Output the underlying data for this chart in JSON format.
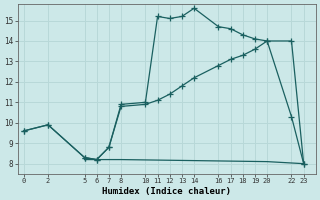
{
  "xlabel": "Humidex (Indice chaleur)",
  "bg_color": "#cce8e8",
  "grid_color": "#b8d8d8",
  "line_color": "#1a6060",
  "xlim": [
    -0.5,
    24
  ],
  "ylim": [
    7.5,
    15.8
  ],
  "yticks": [
    8,
    9,
    10,
    11,
    12,
    13,
    14,
    15
  ],
  "xticks": [
    0,
    2,
    5,
    6,
    7,
    8,
    10,
    11,
    12,
    13,
    14,
    16,
    17,
    18,
    19,
    20,
    22,
    23
  ],
  "line1_x": [
    0,
    2,
    5,
    6,
    7,
    8,
    10,
    11,
    12,
    13,
    14,
    16,
    17,
    18,
    19,
    20,
    22,
    23
  ],
  "line1_y": [
    9.6,
    9.9,
    8.3,
    8.2,
    8.8,
    10.9,
    11.0,
    15.2,
    15.1,
    15.2,
    15.6,
    14.7,
    14.6,
    14.3,
    14.1,
    14.0,
    10.3,
    8.0
  ],
  "line2_x": [
    0,
    2,
    5,
    6,
    7,
    8,
    10,
    11,
    12,
    13,
    14,
    16,
    17,
    18,
    19,
    20,
    22,
    23
  ],
  "line2_y": [
    9.6,
    9.9,
    8.3,
    8.2,
    8.8,
    10.8,
    10.9,
    11.1,
    11.4,
    11.8,
    12.2,
    12.8,
    13.1,
    13.3,
    13.6,
    14.0,
    14.0,
    8.0
  ],
  "line3_x": [
    5,
    8,
    20,
    23
  ],
  "line3_y": [
    8.2,
    8.2,
    8.1,
    8.0
  ],
  "lw": 0.9,
  "ms": 4
}
